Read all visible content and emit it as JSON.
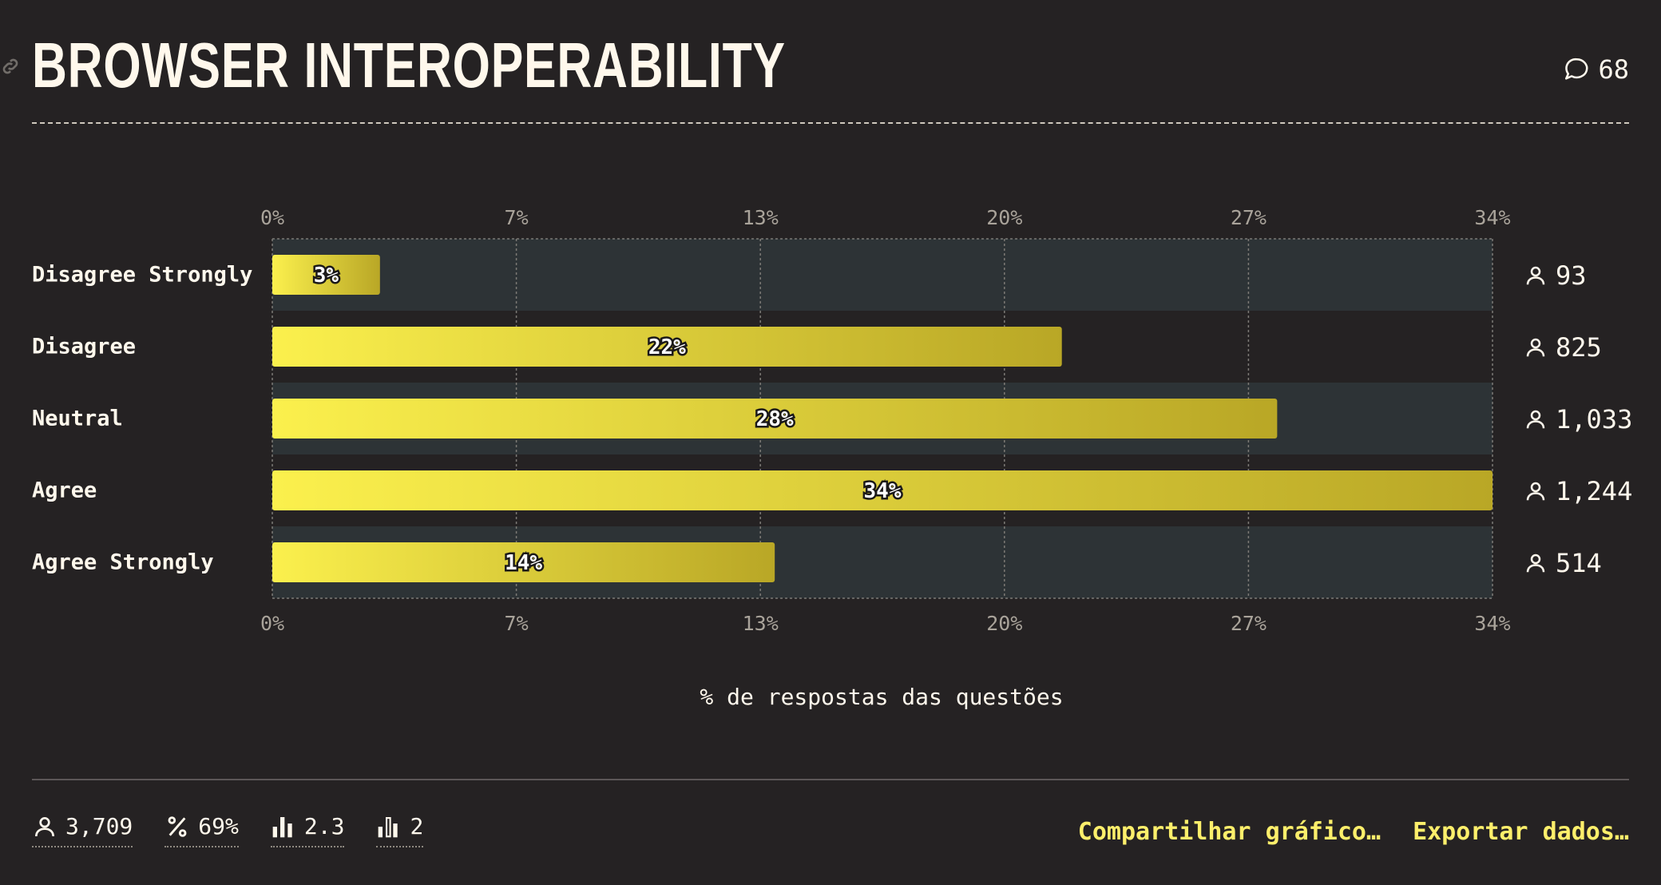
{
  "header": {
    "title": "BROWSER INTEROPERABILITY",
    "comments_count": "68"
  },
  "chart_data": {
    "type": "bar",
    "orientation": "horizontal",
    "categories": [
      "Disagree Strongly",
      "Disagree",
      "Neutral",
      "Agree",
      "Agree Strongly"
    ],
    "values": [
      3,
      22,
      28,
      34,
      14
    ],
    "value_labels": [
      "3%",
      "22%",
      "28%",
      "34%",
      "14%"
    ],
    "counts": [
      "93",
      "825",
      "1,033",
      "1,244",
      "514"
    ],
    "xlim": [
      0,
      34
    ],
    "xticks": [
      "0%",
      "7%",
      "13%",
      "20%",
      "27%",
      "34%"
    ],
    "xlabel": "% de respostas das questões",
    "grid": true,
    "bar_gradient": [
      "#fbf04d",
      "#b9a726"
    ]
  },
  "footer": {
    "stats": [
      {
        "icon": "respondents-icon",
        "value": "3,709"
      },
      {
        "icon": "percent-icon",
        "value": "69%"
      },
      {
        "icon": "average-bars-icon",
        "value": "2.3"
      },
      {
        "icon": "median-bars-icon",
        "value": "2"
      }
    ],
    "share_label": "Compartilhar gráfico…",
    "export_label": "Exportar dados…"
  },
  "colors": {
    "background": "#252223",
    "band": "#2d3336",
    "accent": "#fdef6b",
    "text": "#fff8ec"
  }
}
